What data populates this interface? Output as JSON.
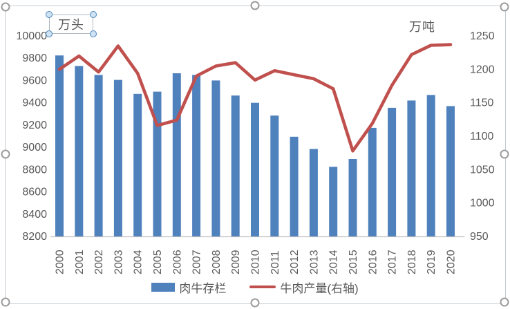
{
  "colors": {
    "bar": "#4F81BD",
    "line": "#C0504D",
    "axis_text": "#595959",
    "axis_line": "#BFBFBF",
    "frame_border": "#C3CCD4",
    "chart_handle_border": "#9B9B9B",
    "textbox_handle_fill": "#CFE3F5",
    "textbox_handle_border": "#4A84B8"
  },
  "chart_data": {
    "type": "bar+line combo (dual axis)",
    "title": "",
    "categories": [
      "2000",
      "2001",
      "2002",
      "2003",
      "2004",
      "2005",
      "2006",
      "2007",
      "2008",
      "2009",
      "2010",
      "2011",
      "2012",
      "2013",
      "2014",
      "2015",
      "2016",
      "2017",
      "2018",
      "2019",
      "2020"
    ],
    "series": [
      {
        "name": "肉牛存栏",
        "type": "bar",
        "axis": "left",
        "color": "#4F81BD",
        "values": [
          9825,
          9730,
          9650,
          9605,
          9480,
          9500,
          9665,
          9650,
          9600,
          9465,
          9400,
          9285,
          9095,
          8985,
          8825,
          8895,
          9175,
          9355,
          9420,
          9470,
          9370
        ]
      },
      {
        "name": "牛肉产量(右轴)",
        "type": "line",
        "axis": "right",
        "color": "#C0504D",
        "values": [
          1200,
          1220,
          1196,
          1235,
          1194,
          1116,
          1124,
          1190,
          1205,
          1210,
          1184,
          1198,
          1192,
          1186,
          1171,
          1078,
          1119,
          1176,
          1222,
          1236,
          1237
        ]
      }
    ],
    "left_axis": {
      "title": "万头",
      "range": [
        8200,
        10000
      ],
      "step": 200,
      "ticks": [
        "8200",
        "8400",
        "8600",
        "8800",
        "9000",
        "9200",
        "9400",
        "9600",
        "9800",
        "10000"
      ]
    },
    "right_axis": {
      "title": "万吨",
      "range": [
        950,
        1250
      ],
      "step": 50,
      "ticks": [
        "950",
        "1000",
        "1050",
        "1100",
        "1150",
        "1200",
        "1250"
      ]
    },
    "legend_position": "bottom",
    "grid": false,
    "x_label_rotation": -90
  }
}
